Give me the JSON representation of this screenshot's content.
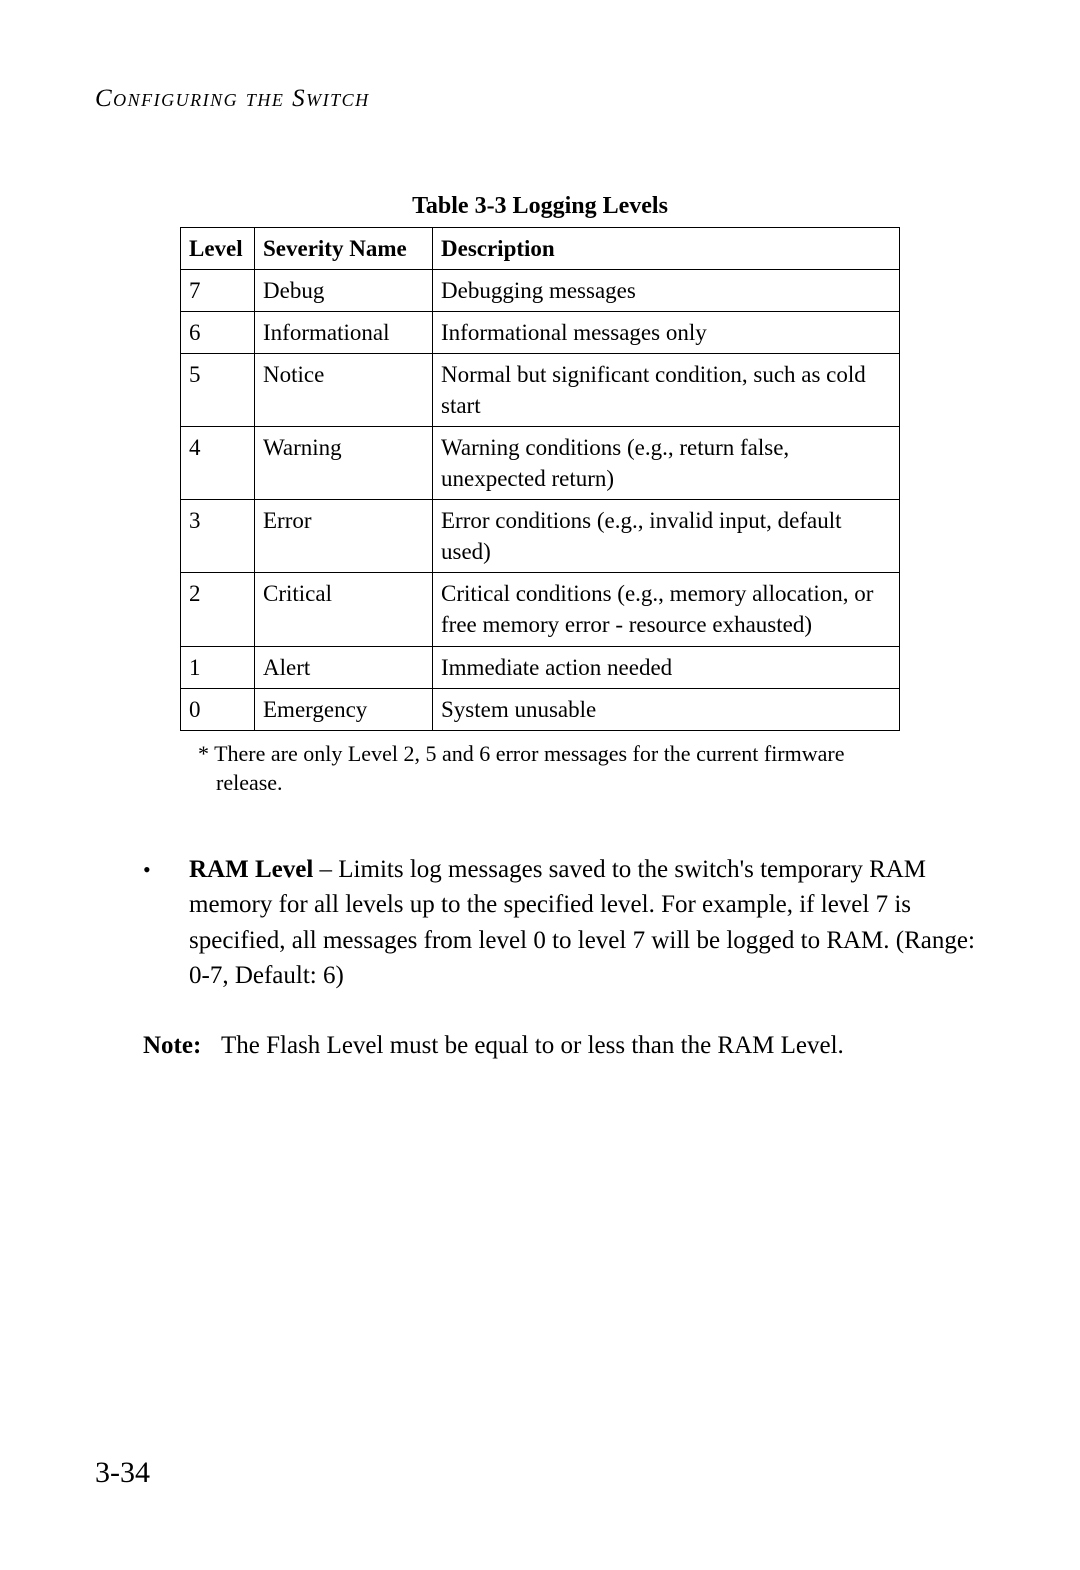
{
  "header": "Configuring the Switch",
  "table": {
    "caption": "Table 3-3  Logging Levels",
    "columns": [
      "Level",
      "Severity Name",
      "Description"
    ],
    "rows": [
      [
        "7",
        "Debug",
        "Debugging messages"
      ],
      [
        "6",
        "Informational",
        "Informational messages only"
      ],
      [
        "5",
        "Notice",
        "Normal but significant condition, such as cold start"
      ],
      [
        "4",
        "Warning",
        "Warning conditions (e.g., return false, unexpected return)"
      ],
      [
        "3",
        "Error",
        "Error conditions (e.g., invalid input, default used)"
      ],
      [
        "2",
        "Critical",
        "Critical conditions (e.g., memory allocation, or free memory error - resource exhausted)"
      ],
      [
        "1",
        "Alert",
        "Immediate action needed"
      ],
      [
        "0",
        "Emergency",
        "System unusable"
      ]
    ],
    "footnote": "* There are only Level 2, 5 and 6 error messages for the current firmware release."
  },
  "bullet": {
    "term": "RAM Level",
    "separator": " – ",
    "text": "Limits log messages saved to the switch's temporary RAM memory for all levels up to the specified level. For example, if level 7 is specified, all messages from level 0 to level 7 will be logged to RAM. (Range: 0-7, Default: 6)"
  },
  "note": {
    "label": "Note:",
    "text": "The Flash Level must be equal to or less than the RAM Level."
  },
  "page_number": "3-34"
}
